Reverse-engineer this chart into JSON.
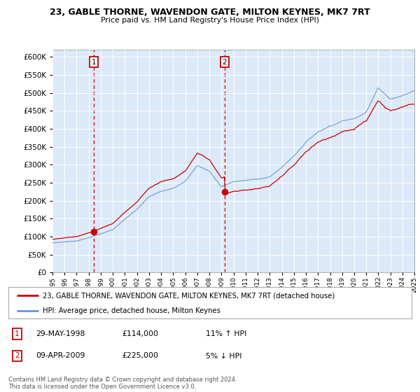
{
  "title": "23, GABLE THORNE, WAVENDON GATE, MILTON KEYNES, MK7 7RT",
  "subtitle": "Price paid vs. HM Land Registry's House Price Index (HPI)",
  "legend_line1": "23, GABLE THORNE, WAVENDON GATE, MILTON KEYNES, MK7 7RT (detached house)",
  "legend_line2": "HPI: Average price, detached house, Milton Keynes",
  "annotation1_date": "29-MAY-1998",
  "annotation1_price": "£114,000",
  "annotation1_hpi": "11% ↑ HPI",
  "annotation2_date": "09-APR-2009",
  "annotation2_price": "£225,000",
  "annotation2_hpi": "5% ↓ HPI",
  "footer": "Contains HM Land Registry data © Crown copyright and database right 2024.\nThis data is licensed under the Open Government Licence v3.0.",
  "sale1_x": 1998.41,
  "sale1_y": 114000,
  "sale2_x": 2009.27,
  "sale2_y": 225000,
  "xmin": 1995,
  "xmax": 2025,
  "ymin": 0,
  "ymax": 620000,
  "yticks": [
    0,
    50000,
    100000,
    150000,
    200000,
    250000,
    300000,
    350000,
    400000,
    450000,
    500000,
    550000,
    600000
  ],
  "plot_bg_color": "#dce9f8",
  "grid_color": "#ffffff",
  "red_line_color": "#cc0000",
  "blue_line_color": "#6699cc",
  "sale_dot_color": "#cc0000",
  "annotation_box_color": "#cc0000",
  "dashed_line_color": "#cc0000"
}
